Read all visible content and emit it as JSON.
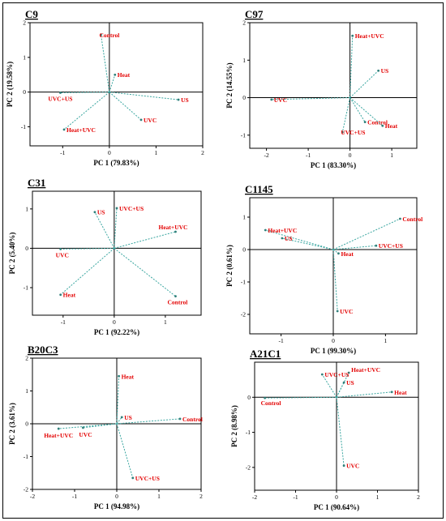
{
  "colors": {
    "loading_line": "#3aa6a0",
    "point": "#2f7f7a",
    "label": "#e30000",
    "axes": "#000000"
  },
  "chart_data": [
    {
      "type": "scatter",
      "title": "C9",
      "xlabel": "PC 1 (79.83%)",
      "ylabel": "PC 2 (19.58%)",
      "xlim": [
        -1.7,
        2.0
      ],
      "ylim": [
        -1.55,
        2.0
      ],
      "xticks": [
        -1,
        0,
        1,
        2
      ],
      "yticks": [
        -1,
        0,
        1,
        2
      ],
      "points": [
        {
          "name": "Control",
          "x": -0.18,
          "y": 1.65
        },
        {
          "name": "Heat",
          "x": 0.12,
          "y": 0.5
        },
        {
          "name": "UVC+US",
          "x": -1.05,
          "y": -0.02
        },
        {
          "name": "US",
          "x": 1.48,
          "y": -0.22
        },
        {
          "name": "UVC",
          "x": 0.68,
          "y": -0.8
        },
        {
          "name": "Heat+UVC",
          "x": -0.97,
          "y": -1.08
        }
      ]
    },
    {
      "type": "scatter",
      "title": "C97",
      "xlabel": "PC 1 (83.30%)",
      "ylabel": "PC 2 (14.55%)",
      "xlim": [
        -2.4,
        1.6
      ],
      "ylim": [
        -1.35,
        2.0
      ],
      "xticks": [
        -2,
        -1,
        0,
        1
      ],
      "yticks": [
        -1,
        0,
        1,
        2
      ],
      "points": [
        {
          "name": "Heat+UVC",
          "x": 0.06,
          "y": 1.65
        },
        {
          "name": "US",
          "x": 0.68,
          "y": 0.72
        },
        {
          "name": "UVC",
          "x": -1.88,
          "y": -0.05
        },
        {
          "name": "Control",
          "x": 0.36,
          "y": -0.65
        },
        {
          "name": "Heat",
          "x": 0.78,
          "y": -0.75
        },
        {
          "name": "UVC+US",
          "x": -0.18,
          "y": -0.92
        }
      ]
    },
    {
      "type": "scatter",
      "title": "C31",
      "xlabel": "PC 1 (92.22%)",
      "ylabel": "PC 2 (5.40%)",
      "xlim": [
        -1.6,
        1.7
      ],
      "ylim": [
        -1.7,
        1.45
      ],
      "xticks": [
        -1,
        0,
        1
      ],
      "yticks": [
        -1,
        0,
        1
      ],
      "points": [
        {
          "name": "UVC+US",
          "x": 0.05,
          "y": 1.02
        },
        {
          "name": "US",
          "x": -0.38,
          "y": 0.92
        },
        {
          "name": "Heat+UVC",
          "x": 1.2,
          "y": 0.42
        },
        {
          "name": "UVC",
          "x": -1.05,
          "y": -0.02
        },
        {
          "name": "Heat",
          "x": -1.05,
          "y": -1.18
        },
        {
          "name": "Control",
          "x": 1.2,
          "y": -1.22
        }
      ]
    },
    {
      "type": "scatter",
      "title": "C1145",
      "xlabel": "PC 1 (99.30%)",
      "ylabel": "PC 2 (0.61%)",
      "xlim": [
        -1.6,
        1.6
      ],
      "ylim": [
        -2.6,
        1.6
      ],
      "xticks": [
        -1,
        0,
        1
      ],
      "yticks": [
        -2,
        -1,
        0,
        1
      ],
      "points": [
        {
          "name": "Control",
          "x": 1.28,
          "y": 0.95
        },
        {
          "name": "Heat+UVC",
          "x": -1.3,
          "y": 0.6
        },
        {
          "name": "US",
          "x": -0.98,
          "y": 0.35
        },
        {
          "name": "UVC+US",
          "x": 0.82,
          "y": 0.12
        },
        {
          "name": "Heat",
          "x": 0.1,
          "y": -0.12
        },
        {
          "name": "UVC",
          "x": 0.08,
          "y": -1.9
        }
      ]
    },
    {
      "type": "scatter",
      "title": "B20C3",
      "xlabel": "PC 1 (94.98%)",
      "ylabel": "PC 2 (3.61%)",
      "xlim": [
        -2.0,
        2.0
      ],
      "ylim": [
        -2.0,
        2.0
      ],
      "xticks": [
        -2,
        -1,
        0,
        1,
        2
      ],
      "yticks": [
        -2,
        -1,
        0,
        1,
        2
      ],
      "points": [
        {
          "name": "Heat",
          "x": 0.05,
          "y": 1.45
        },
        {
          "name": "US",
          "x": 0.12,
          "y": 0.2
        },
        {
          "name": "Control",
          "x": 1.5,
          "y": 0.15
        },
        {
          "name": "Heat+UVC",
          "x": -1.38,
          "y": -0.15
        },
        {
          "name": "UVC",
          "x": -0.8,
          "y": -0.12
        },
        {
          "name": "UVC+US",
          "x": 0.38,
          "y": -1.65
        }
      ]
    },
    {
      "type": "scatter",
      "title": "A21C1",
      "xlabel": "PC 1 (90.64%)",
      "ylabel": "PC 2 (8.98%)",
      "xlim": [
        -2.0,
        2.0
      ],
      "ylim": [
        -2.65,
        1.0
      ],
      "xticks": [
        -2,
        -1,
        0,
        1,
        2
      ],
      "yticks": [
        -2,
        -1,
        0
      ],
      "points": [
        {
          "name": "Heat+UVC",
          "x": 0.3,
          "y": 0.7
        },
        {
          "name": "UVC+US",
          "x": -0.35,
          "y": 0.65
        },
        {
          "name": "US",
          "x": 0.18,
          "y": 0.42
        },
        {
          "name": "Heat",
          "x": 1.35,
          "y": 0.15
        },
        {
          "name": "Control",
          "x": -1.75,
          "y": -0.02
        },
        {
          "name": "UVC",
          "x": 0.18,
          "y": -1.95
        }
      ]
    }
  ]
}
